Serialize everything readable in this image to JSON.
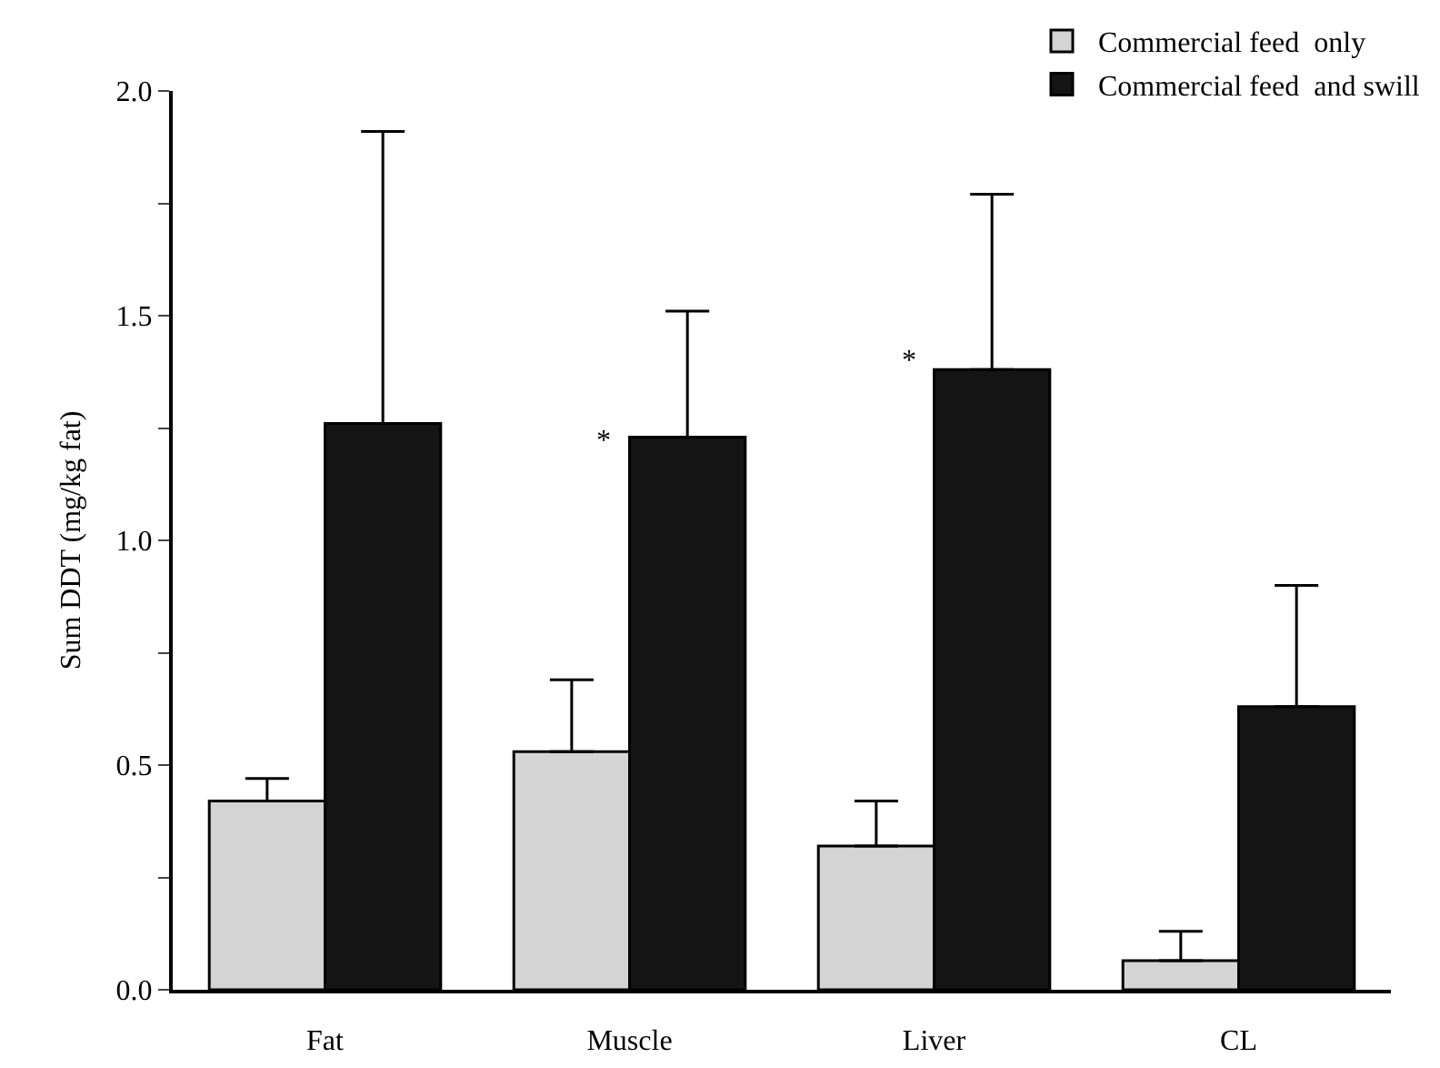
{
  "chart_data": {
    "type": "bar",
    "ylabel": "Sum DDT (mg/kg fat)",
    "categories": [
      "Fat",
      "Muscle",
      "Liver",
      "CL"
    ],
    "series": [
      {
        "name": "Commercial feed  only",
        "color": "#d4d4d4",
        "values": [
          0.42,
          0.53,
          0.32,
          0.065
        ],
        "errors": [
          [
            0.42,
            0.47
          ],
          [
            0.53,
            0.69
          ],
          [
            0.32,
            0.42
          ],
          [
            0.065,
            0.13
          ]
        ]
      },
      {
        "name": "Commercial feed  and swill",
        "color": "#141414",
        "values": [
          1.26,
          1.23,
          1.38,
          0.63
        ],
        "errors": [
          [
            1.26,
            1.91
          ],
          [
            1.23,
            1.51
          ],
          [
            1.38,
            1.77
          ],
          [
            0.63,
            0.9
          ]
        ]
      }
    ],
    "ylim": [
      0,
      2.0
    ],
    "yticks": [
      {
        "value": 0,
        "label": "0.0"
      },
      {
        "value": 0.25,
        "label": null
      },
      0.5,
      {
        "value": 0.75,
        "label": null
      },
      {
        "value": 1,
        "label": "1.0"
      },
      {
        "value": 1.25,
        "label": null
      },
      1.5,
      {
        "value": 1.75,
        "label": null
      },
      {
        "value": 2,
        "label": "2.0"
      }
    ],
    "annotations": [
      {
        "text": "*",
        "x": "Muscle",
        "y": 1.22
      },
      {
        "text": "*",
        "x": "Liver",
        "y": 1.4
      }
    ],
    "legend": "top right"
  }
}
